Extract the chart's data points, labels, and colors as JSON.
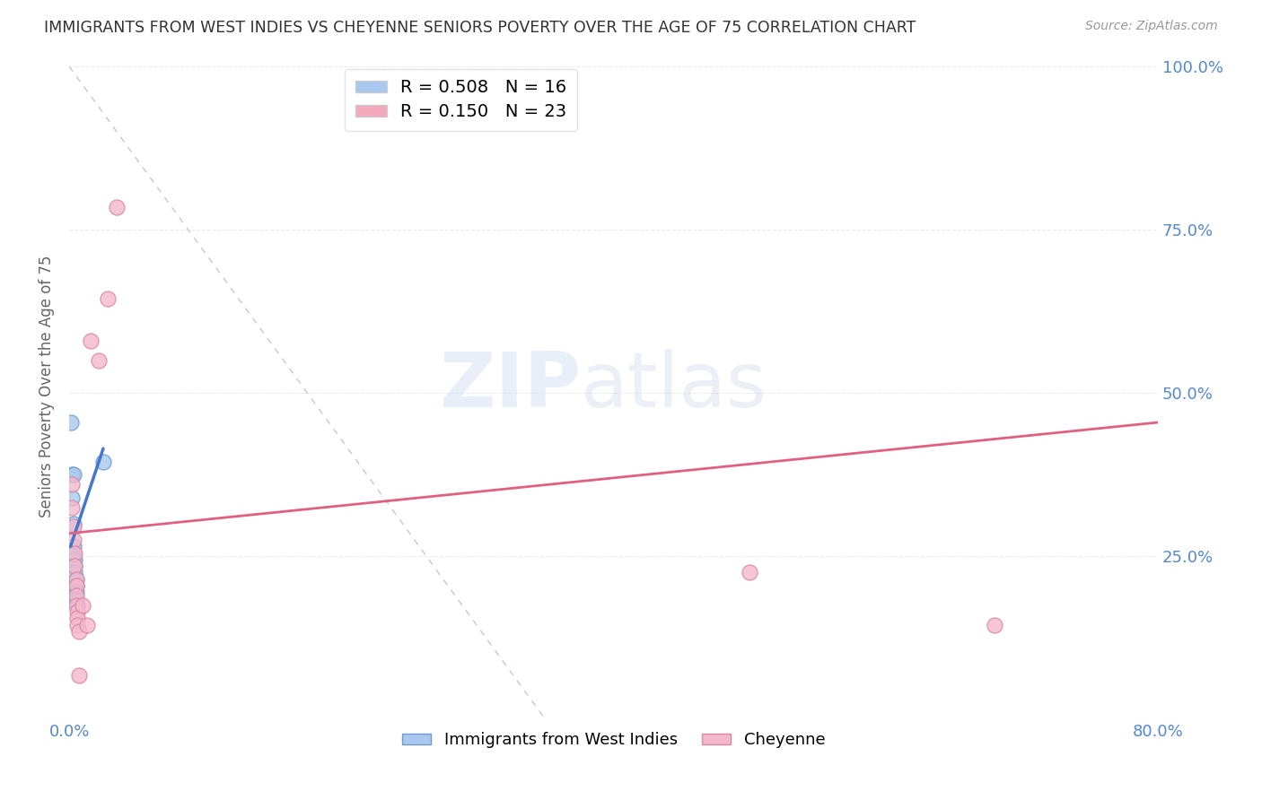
{
  "title": "IMMIGRANTS FROM WEST INDIES VS CHEYENNE SENIORS POVERTY OVER THE AGE OF 75 CORRELATION CHART",
  "source": "Source: ZipAtlas.com",
  "ylabel": "Seniors Poverty Over the Age of 75",
  "xlim": [
    0.0,
    0.8
  ],
  "ylim": [
    0.0,
    1.02
  ],
  "xtick_vals": [
    0.0,
    0.1,
    0.2,
    0.3,
    0.4,
    0.5,
    0.6,
    0.7,
    0.8
  ],
  "xticklabels": [
    "0.0%",
    "",
    "",
    "",
    "",
    "",
    "",
    "",
    "80.0%"
  ],
  "ytick_positions": [
    0.0,
    0.25,
    0.5,
    0.75,
    1.0
  ],
  "ytick_labels_right": [
    "",
    "25.0%",
    "50.0%",
    "75.0%",
    "100.0%"
  ],
  "legend_entries": [
    {
      "label": "R = 0.508   N = 16",
      "color": "#a8c8f0"
    },
    {
      "label": "R = 0.150   N = 23",
      "color": "#f4a8bc"
    }
  ],
  "blue_scatter": [
    [
      0.001,
      0.455
    ],
    [
      0.002,
      0.375
    ],
    [
      0.002,
      0.34
    ],
    [
      0.003,
      0.375
    ],
    [
      0.003,
      0.3
    ],
    [
      0.003,
      0.265
    ],
    [
      0.003,
      0.255
    ],
    [
      0.004,
      0.245
    ],
    [
      0.004,
      0.235
    ],
    [
      0.004,
      0.225
    ],
    [
      0.005,
      0.215
    ],
    [
      0.005,
      0.205
    ],
    [
      0.005,
      0.195
    ],
    [
      0.005,
      0.185
    ],
    [
      0.006,
      0.175
    ],
    [
      0.025,
      0.395
    ]
  ],
  "pink_scatter": [
    [
      0.002,
      0.36
    ],
    [
      0.002,
      0.325
    ],
    [
      0.003,
      0.295
    ],
    [
      0.003,
      0.275
    ],
    [
      0.004,
      0.255
    ],
    [
      0.004,
      0.235
    ],
    [
      0.005,
      0.215
    ],
    [
      0.005,
      0.205
    ],
    [
      0.005,
      0.19
    ],
    [
      0.005,
      0.175
    ],
    [
      0.006,
      0.165
    ],
    [
      0.006,
      0.155
    ],
    [
      0.006,
      0.145
    ],
    [
      0.007,
      0.135
    ],
    [
      0.007,
      0.068
    ],
    [
      0.01,
      0.175
    ],
    [
      0.013,
      0.145
    ],
    [
      0.016,
      0.58
    ],
    [
      0.022,
      0.55
    ],
    [
      0.028,
      0.645
    ],
    [
      0.035,
      0.785
    ],
    [
      0.5,
      0.225
    ],
    [
      0.68,
      0.145
    ]
  ],
  "blue_line_x": [
    0.001,
    0.025
  ],
  "blue_line_y": [
    0.265,
    0.415
  ],
  "pink_line_x": [
    0.0,
    0.8
  ],
  "pink_line_y": [
    0.285,
    0.455
  ],
  "diagonal_line_x": [
    0.0,
    0.35
  ],
  "diagonal_line_y": [
    1.0,
    0.0
  ],
  "watermark_zip": "ZIP",
  "watermark_atlas": "atlas",
  "bg_color": "#ffffff",
  "grid_color": "#e8e8e8",
  "title_color": "#333333",
  "blue_scatter_color": "#a8c8f0",
  "blue_scatter_edge": "#7099cc",
  "pink_scatter_color": "#f4b8cc",
  "pink_scatter_edge": "#d888a0",
  "blue_line_color": "#4477cc",
  "pink_line_color": "#e06080",
  "diagonal_color": "#c0c8d8",
  "right_axis_color": "#5588cc",
  "bottom_axis_color": "#5588cc"
}
